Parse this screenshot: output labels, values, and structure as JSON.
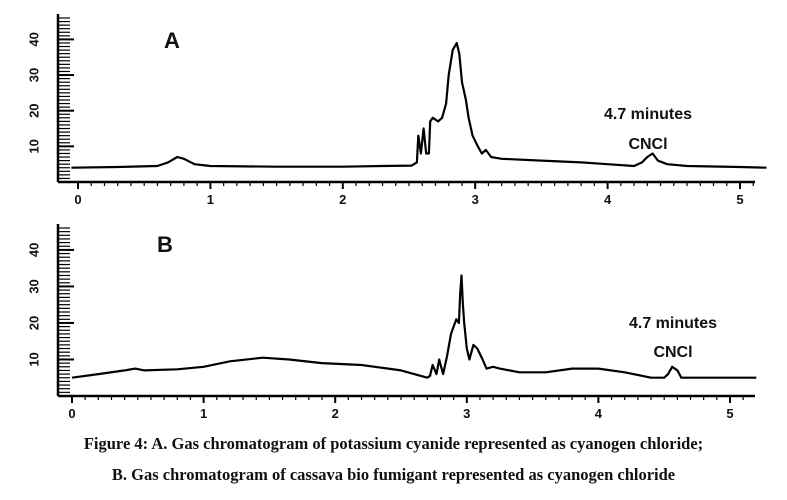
{
  "caption": {
    "line1": "Figure 4: A. Gas chromatogram of potassium cyanide represented as cyanogen chloride;",
    "line2": "B. Gas chromatogram of cassava bio fumigant represented as cyanogen chloride"
  },
  "chart_data": [
    {
      "type": "line",
      "panel_label": "A",
      "xlim": [
        0,
        5.2
      ],
      "ylim": [
        0,
        46
      ],
      "x_ticks": [
        "0",
        "1",
        "2",
        "3",
        "4",
        "5"
      ],
      "y_ticks": [
        "10",
        "20",
        "30",
        "40"
      ],
      "annotations": [
        {
          "text": "4.7 minutes",
          "x": 4.5,
          "y": 18
        },
        {
          "text": "CNCl",
          "x": 4.5,
          "y": 10
        }
      ],
      "series": [
        {
          "points": [
            [
              -0.05,
              4
            ],
            [
              0.3,
              4.2
            ],
            [
              0.6,
              4.5
            ],
            [
              0.68,
              5.5
            ],
            [
              0.75,
              7
            ],
            [
              0.8,
              6.5
            ],
            [
              0.88,
              5
            ],
            [
              1.0,
              4.5
            ],
            [
              1.5,
              4.3
            ],
            [
              2.0,
              4.3
            ],
            [
              2.3,
              4.5
            ],
            [
              2.52,
              4.6
            ],
            [
              2.56,
              5.5
            ],
            [
              2.57,
              13
            ],
            [
              2.59,
              8
            ],
            [
              2.61,
              15
            ],
            [
              2.63,
              8
            ],
            [
              2.65,
              8
            ],
            [
              2.66,
              17
            ],
            [
              2.68,
              18
            ],
            [
              2.72,
              17
            ],
            [
              2.75,
              18
            ],
            [
              2.78,
              22
            ],
            [
              2.8,
              30
            ],
            [
              2.83,
              37
            ],
            [
              2.86,
              39
            ],
            [
              2.88,
              36
            ],
            [
              2.9,
              28
            ],
            [
              2.93,
              23
            ],
            [
              2.95,
              18
            ],
            [
              2.98,
              13
            ],
            [
              3.02,
              10
            ],
            [
              3.05,
              8
            ],
            [
              3.08,
              9
            ],
            [
              3.12,
              7
            ],
            [
              3.2,
              6.5
            ],
            [
              3.5,
              6
            ],
            [
              3.8,
              5.5
            ],
            [
              4.0,
              5
            ],
            [
              4.2,
              4.5
            ],
            [
              4.26,
              5.5
            ],
            [
              4.3,
              7
            ],
            [
              4.34,
              8
            ],
            [
              4.38,
              6
            ],
            [
              4.45,
              5
            ],
            [
              4.6,
              4.5
            ],
            [
              5.0,
              4.2
            ],
            [
              5.2,
              4
            ]
          ]
        }
      ]
    },
    {
      "type": "line",
      "panel_label": "B",
      "xlim": [
        0,
        5.2
      ],
      "ylim": [
        0,
        46
      ],
      "x_ticks": [
        "0",
        "1",
        "2",
        "3",
        "4",
        "5"
      ],
      "y_ticks": [
        "10",
        "20",
        "30",
        "40"
      ],
      "annotations": [
        {
          "text": "4.7 minutes",
          "x": 4.55,
          "y": 18
        },
        {
          "text": "CNCl",
          "x": 4.55,
          "y": 11
        }
      ],
      "series": [
        {
          "points": [
            [
              0.0,
              5
            ],
            [
              0.2,
              6
            ],
            [
              0.4,
              7
            ],
            [
              0.48,
              7.5
            ],
            [
              0.55,
              7
            ],
            [
              0.8,
              7.3
            ],
            [
              1.0,
              8
            ],
            [
              1.2,
              9.5
            ],
            [
              1.45,
              10.5
            ],
            [
              1.65,
              10
            ],
            [
              1.9,
              9
            ],
            [
              2.2,
              8.5
            ],
            [
              2.5,
              7
            ],
            [
              2.7,
              5
            ],
            [
              2.72,
              5.5
            ],
            [
              2.74,
              8.5
            ],
            [
              2.77,
              6
            ],
            [
              2.79,
              10
            ],
            [
              2.82,
              6
            ],
            [
              2.85,
              11
            ],
            [
              2.88,
              17
            ],
            [
              2.92,
              21
            ],
            [
              2.94,
              20
            ],
            [
              2.95,
              28
            ],
            [
              2.96,
              33
            ],
            [
              2.97,
              25
            ],
            [
              2.98,
              20
            ],
            [
              3.0,
              13
            ],
            [
              3.02,
              10
            ],
            [
              3.05,
              14
            ],
            [
              3.08,
              13
            ],
            [
              3.12,
              10
            ],
            [
              3.15,
              7.5
            ],
            [
              3.2,
              8
            ],
            [
              3.25,
              7.5
            ],
            [
              3.4,
              6.5
            ],
            [
              3.6,
              6.5
            ],
            [
              3.8,
              7.5
            ],
            [
              4.0,
              7.5
            ],
            [
              4.2,
              6.5
            ],
            [
              4.4,
              5
            ],
            [
              4.5,
              5
            ],
            [
              4.53,
              6
            ],
            [
              4.56,
              8
            ],
            [
              4.6,
              7
            ],
            [
              4.63,
              5
            ],
            [
              4.7,
              5
            ],
            [
              5.0,
              5
            ],
            [
              5.2,
              5
            ]
          ]
        }
      ]
    }
  ]
}
